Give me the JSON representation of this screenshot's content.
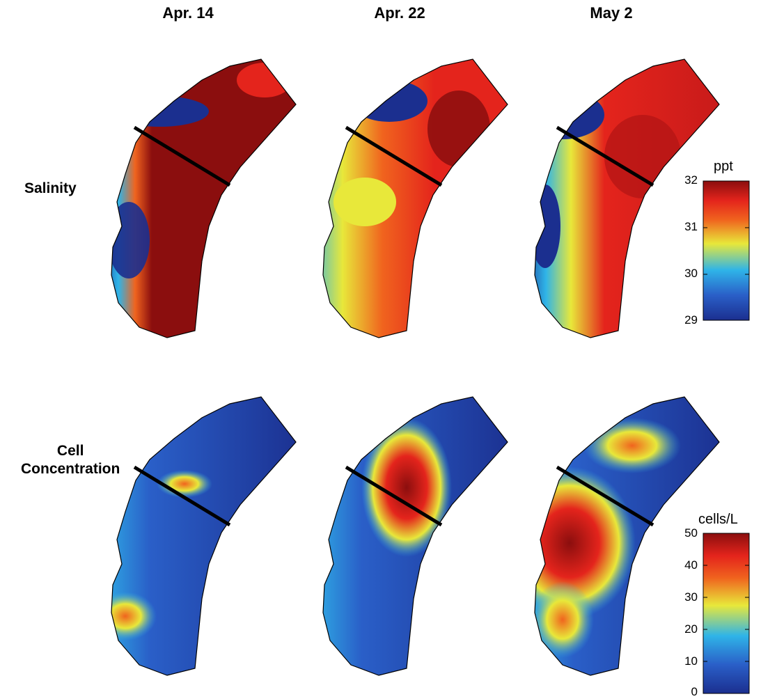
{
  "column_titles": [
    "Apr. 14",
    "Apr. 22",
    "May 2"
  ],
  "row_titles": {
    "salinity": "Salinity",
    "cells_line1": "Cell",
    "cells_line2": "Concentration"
  },
  "colorbars": {
    "salinity": {
      "unit": "ppt",
      "ticks": [
        "32",
        "31",
        "30",
        "29"
      ]
    },
    "cells": {
      "unit": "cells/L",
      "ticks": [
        "50",
        "40",
        "30",
        "20",
        "10",
        "0"
      ]
    }
  },
  "colors": {
    "low": "#1b2f8f",
    "mid_low": "#2fb4e8",
    "mid": "#e8e83a",
    "mid_high": "#f0641e",
    "high": "#8b0e0e",
    "coast": "#000000"
  }
}
